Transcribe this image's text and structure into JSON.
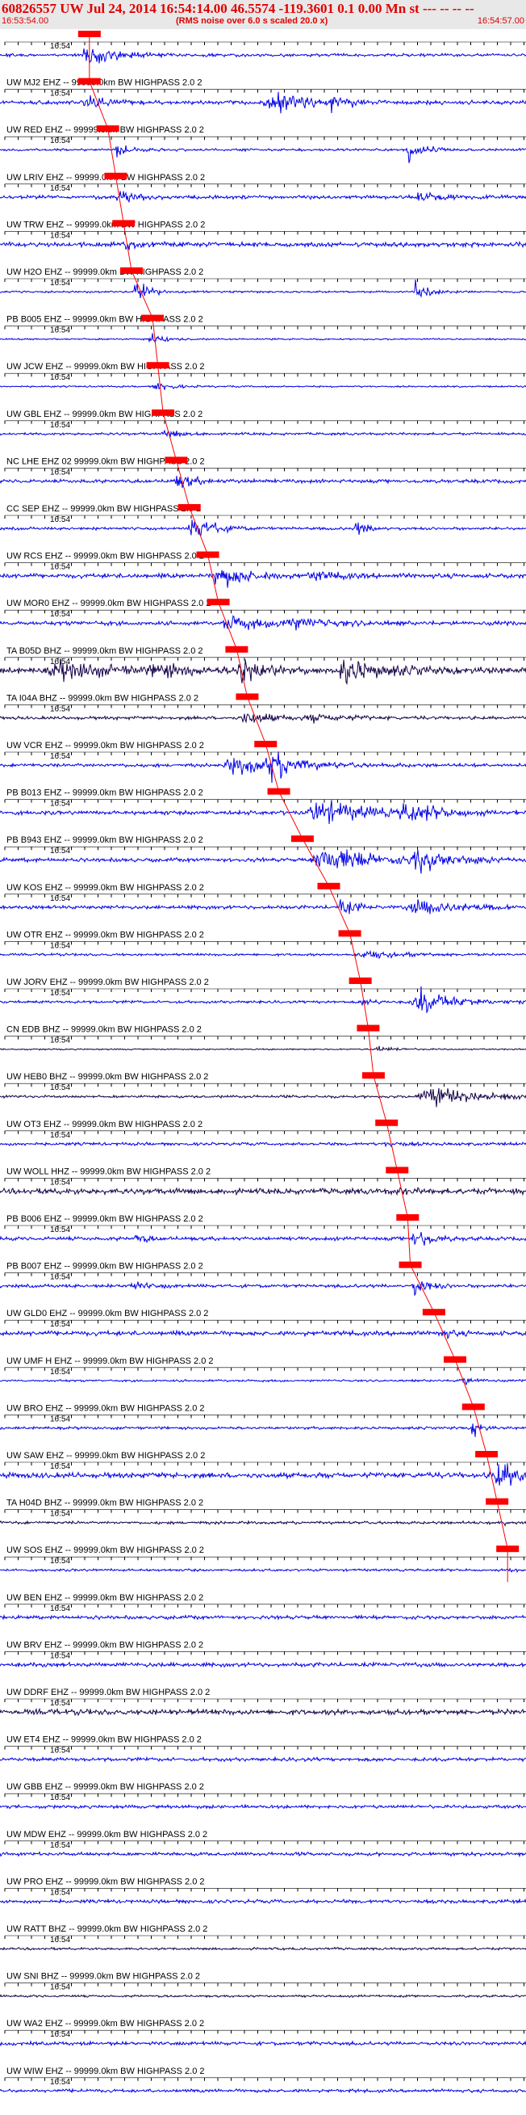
{
  "header": {
    "title": "60826557 UW Jul 24, 2014 16:54:14.00   46.5574 -119.3601  0.1 0.00 Mn st --- -- -- --",
    "start_time": "16:53:54.00",
    "note": "(RMS noise over 6.0 s scaled 20.0 x)",
    "end_time": "16:54:57.00"
  },
  "minute_label": "16:54",
  "colors": {
    "trace": "#0000e6",
    "trace_dark": "#140046",
    "pick": "#ff0000",
    "text": "#000000",
    "header_bg": "#e8e8e8"
  },
  "traces": [
    {
      "label": "",
      "pick": 0.17,
      "env": [
        [
          0.17,
          1.6,
          0.04
        ]
      ],
      "base": 0.22,
      "dark": false
    },
    {
      "label": "UW MJ2 EHZ -- 99999.0km BW  HIGHPASS  2.0  2",
      "pick": 0.17,
      "env": [
        [
          0.17,
          0.9,
          0.03
        ],
        [
          0.52,
          1.6,
          0.05
        ],
        [
          0.63,
          0.9,
          0.03
        ]
      ],
      "base": 0.28,
      "dark": false
    },
    {
      "label": "UW RED EHZ -- 99999.0km BW  HIGHPASS  2.0  2",
      "pick": 0.205,
      "env": [
        [
          0.22,
          1.0,
          0.02
        ],
        [
          0.78,
          2.0,
          0.02
        ]
      ],
      "base": 0.18,
      "dark": false
    },
    {
      "label": "UW LRIV EHZ -- 99999.0km BW  HIGHPASS  2.0  2",
      "pick": 0.22,
      "env": [
        [
          0.23,
          0.7,
          0.03
        ],
        [
          0.8,
          0.6,
          0.03
        ]
      ],
      "base": 0.28,
      "dark": false
    },
    {
      "label": "UW TRW EHZ -- 99999.0km BW  HIGHPASS  2.0  2",
      "pick": 0.235,
      "env": [
        [
          0.24,
          0.6,
          0.03
        ]
      ],
      "base": 0.34,
      "dark": false
    },
    {
      "label": "UW H2O EHZ -- 99999.0km BW  HIGHPASS  2.0  2",
      "pick": 0.25,
      "env": [
        [
          0.26,
          1.8,
          0.02
        ],
        [
          0.79,
          1.6,
          0.02
        ]
      ],
      "base": 0.14,
      "dark": false
    },
    {
      "label": "PB B005 EHZ -- 99999.0km BW  HIGHPASS  2.0  2",
      "pick": 0.29,
      "env": [
        [
          0.29,
          0.9,
          0.02
        ]
      ],
      "base": 0.12,
      "dark": false
    },
    {
      "label": "UW JCW EHZ -- 99999.0km BW  HIGHPASS  2.0  2",
      "pick": 0.3,
      "env": [
        [
          0.3,
          0.5,
          0.03
        ]
      ],
      "base": 0.12,
      "dark": false
    },
    {
      "label": "UW GBL EHZ -- 99999.0km BW  HIGHPASS  2.0  2",
      "pick": 0.31,
      "env": [
        [
          0.32,
          0.5,
          0.03
        ]
      ],
      "base": 0.18,
      "dark": false
    },
    {
      "label": "NC LHE EHZ 02 99999.0km BW  HIGHPASS  2.0  2",
      "pick": 0.335,
      "env": [
        [
          0.34,
          0.9,
          0.03
        ]
      ],
      "base": 0.26,
      "dark": false
    },
    {
      "label": "CC SEP EHZ -- 99999.0km BW  HIGHPASS  2.0  2",
      "pick": 0.36,
      "env": [
        [
          0.37,
          2.0,
          0.03
        ],
        [
          0.68,
          0.9,
          0.02
        ]
      ],
      "base": 0.2,
      "dark": false
    },
    {
      "label": "UW RCS EHZ -- 99999.0km BW  HIGHPASS  2.0  2",
      "pick": 0.395,
      "env": [
        [
          0.42,
          1.8,
          0.04
        ],
        [
          0.6,
          0.6,
          0.04
        ]
      ],
      "base": 0.34,
      "dark": false
    },
    {
      "label": "UW MOR0 EHZ -- 99999.0km BW  HIGHPASS  2.0  2",
      "pick": 0.415,
      "env": [
        [
          0.44,
          1.1,
          0.05
        ],
        [
          0.55,
          0.7,
          0.06
        ]
      ],
      "base": 0.3,
      "dark": false
    },
    {
      "label": "TA B05D BHZ -- 99999.0km BW  HIGHPASS  2.0  2",
      "pick": 0.45,
      "env": [
        [
          0.12,
          1.2,
          0.08
        ],
        [
          0.3,
          0.8,
          0.05
        ],
        [
          0.46,
          2.2,
          0.03
        ],
        [
          0.66,
          1.6,
          0.06
        ]
      ],
      "base": 0.45,
      "dark": true
    },
    {
      "label": "TA I04A BHZ -- 99999.0km BW  HIGHPASS  2.0  2",
      "pick": 0.47,
      "env": [
        [
          0.47,
          1.0,
          0.04
        ],
        [
          0.6,
          0.5,
          0.05
        ]
      ],
      "base": 0.24,
      "dark": true
    },
    {
      "label": "UW VCR EHZ -- 99999.0km BW  HIGHPASS  2.0  2",
      "pick": 0.505,
      "env": [
        [
          0.45,
          1.2,
          0.07
        ],
        [
          0.52,
          1.8,
          0.04
        ]
      ],
      "base": 0.26,
      "dark": false
    },
    {
      "label": "PB B013 EHZ -- 99999.0km BW  HIGHPASS  2.0  2",
      "pick": 0.53,
      "env": [
        [
          0.61,
          1.8,
          0.07
        ],
        [
          0.78,
          1.2,
          0.06
        ]
      ],
      "base": 0.3,
      "dark": false
    },
    {
      "label": "PB B943 EHZ -- 99999.0km BW  HIGHPASS  2.0  2",
      "pick": 0.575,
      "env": [
        [
          0.62,
          2.0,
          0.07
        ],
        [
          0.8,
          1.4,
          0.06
        ]
      ],
      "base": 0.28,
      "dark": false
    },
    {
      "label": "UW KOS EHZ -- 99999.0km BW  HIGHPASS  2.0  2",
      "pick": 0.625,
      "env": [
        [
          0.65,
          1.4,
          0.02
        ],
        [
          0.8,
          1.0,
          0.07
        ]
      ],
      "base": 0.26,
      "dark": false
    },
    {
      "label": "UW OTR EHZ -- 99999.0km BW  HIGHPASS  2.0  2",
      "pick": 0.665,
      "env": [
        [
          0.7,
          0.5,
          0.06
        ]
      ],
      "base": 0.18,
      "dark": false
    },
    {
      "label": "UW JORV EHZ -- 99999.0km BW  HIGHPASS  2.0  2",
      "pick": 0.685,
      "env": [
        [
          0.8,
          1.9,
          0.05
        ],
        [
          0.69,
          0.4,
          0.02
        ]
      ],
      "base": 0.2,
      "dark": false
    },
    {
      "label": "CN EDB BHZ -- 99999.0km BW  HIGHPASS  2.0  2",
      "pick": 0.7,
      "env": [
        [
          0.72,
          0.4,
          0.03
        ]
      ],
      "base": 0.1,
      "dark": true
    },
    {
      "label": "UW HEB0 BHZ -- 99999.0km BW  HIGHPASS  2.0  2",
      "pick": 0.71,
      "env": [
        [
          0.82,
          1.6,
          0.07
        ]
      ],
      "base": 0.2,
      "dark": true
    },
    {
      "label": "UW OT3 EHZ -- 99999.0km BW  HIGHPASS  2.0  2",
      "pick": 0.735,
      "env": [
        [
          0.74,
          0.3,
          0.03
        ]
      ],
      "base": 0.22,
      "dark": false
    },
    {
      "label": "UW WOLL HHZ -- 99999.0km BW  HIGHPASS  2.0  2",
      "pick": 0.755,
      "env": [
        [
          0.76,
          0.2,
          0.03
        ]
      ],
      "base": 0.42,
      "dark": true
    },
    {
      "label": "PB B006 EHZ -- 99999.0km BW  HIGHPASS  2.0  2",
      "pick": 0.775,
      "env": [
        [
          0.79,
          1.9,
          0.02
        ],
        [
          0.26,
          0.6,
          0.02
        ]
      ],
      "base": 0.26,
      "dark": false
    },
    {
      "label": "PB B007 EHZ -- 99999.0km BW  HIGHPASS  2.0  2",
      "pick": 0.78,
      "env": [
        [
          0.79,
          1.5,
          0.02
        ],
        [
          0.25,
          0.5,
          0.03
        ]
      ],
      "base": 0.24,
      "dark": false
    },
    {
      "label": "UW GLD0 EHZ -- 99999.0km BW  HIGHPASS  2.0  2",
      "pick": 0.825,
      "env": [
        [
          0.84,
          0.6,
          0.02
        ]
      ],
      "base": 0.34,
      "dark": false
    },
    {
      "label": "UW UMF H EHZ -- 99999.0km BW  HIGHPASS  2.0  2",
      "pick": 0.865,
      "env": [
        [
          0.88,
          0.6,
          0.02
        ]
      ],
      "base": 0.16,
      "dark": false
    },
    {
      "label": "UW BRO EHZ -- 99999.0km BW  HIGHPASS  2.0  2",
      "pick": 0.9,
      "env": [
        [
          0.9,
          1.6,
          0.01
        ]
      ],
      "base": 0.2,
      "dark": false
    },
    {
      "label": "UW SAW EHZ -- 99999.0km BW  HIGHPASS  2.0  2",
      "pick": 0.925,
      "env": [
        [
          0.95,
          1.8,
          0.04
        ]
      ],
      "base": 0.4,
      "dark": false
    },
    {
      "label": "TA H04D BHZ -- 99999.0km BW  HIGHPASS  2.0  2",
      "pick": 0.945,
      "env": [
        [
          0.96,
          0.3,
          0.02
        ]
      ],
      "base": 0.22,
      "dark": true
    },
    {
      "label": "UW SOS EHZ -- 99999.0km BW  HIGHPASS  2.0  2",
      "pick": 0.965,
      "env": [
        [
          0.97,
          0.3,
          0.02
        ]
      ],
      "base": 0.18,
      "dark": false
    },
    {
      "label": "UW BEN EHZ -- 99999.0km BW  HIGHPASS  2.0  2",
      "pick": null,
      "env": [],
      "base": 0.26,
      "dark": false
    },
    {
      "label": "UW BRV EHZ -- 99999.0km BW  HIGHPASS  2.0  2",
      "pick": null,
      "env": [],
      "base": 0.3,
      "dark": false
    },
    {
      "label": "UW DDRF EHZ -- 99999.0km BW  HIGHPASS  2.0  2",
      "pick": null,
      "env": [],
      "base": 0.4,
      "dark": true
    },
    {
      "label": "UW ET4 EHZ -- 99999.0km BW  HIGHPASS  2.0  2",
      "pick": null,
      "env": [],
      "base": 0.26,
      "dark": false
    },
    {
      "label": "UW GBB EHZ -- 99999.0km BW  HIGHPASS  2.0  2",
      "pick": null,
      "env": [],
      "base": 0.24,
      "dark": false
    },
    {
      "label": "UW MDW EHZ -- 99999.0km BW  HIGHPASS  2.0  2",
      "pick": null,
      "env": [],
      "base": 0.26,
      "dark": false
    },
    {
      "label": "UW PRO EHZ -- 99999.0km BW  HIGHPASS  2.0  2",
      "pick": null,
      "env": [],
      "base": 0.26,
      "dark": false
    },
    {
      "label": "UW RATT BHZ -- 99999.0km BW  HIGHPASS  2.0  2",
      "pick": null,
      "env": [],
      "base": 0.18,
      "dark": true
    },
    {
      "label": "UW SNI BHZ -- 99999.0km BW  HIGHPASS  2.0  2",
      "pick": null,
      "env": [],
      "base": 0.16,
      "dark": true
    },
    {
      "label": "UW WA2 EHZ -- 99999.0km BW  HIGHPASS  2.0  2",
      "pick": null,
      "env": [],
      "base": 0.26,
      "dark": false
    },
    {
      "label": "UW WIW EHZ -- 99999.0km BW  HIGHPASS  2.0  2",
      "pick": null,
      "env": [],
      "base": 0.24,
      "dark": false
    }
  ]
}
